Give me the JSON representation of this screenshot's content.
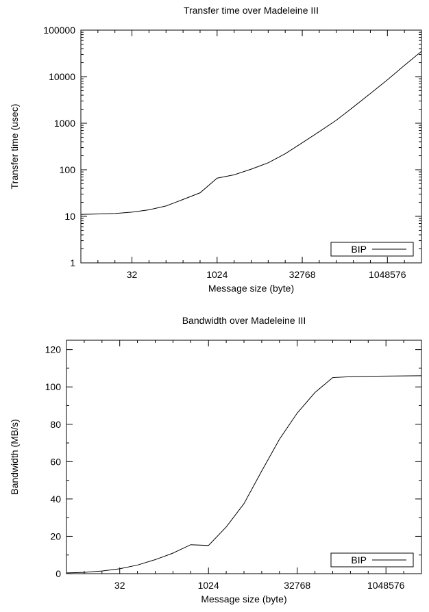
{
  "chart_data": [
    {
      "type": "line",
      "title": "Transfer time over Madeleine III",
      "xlabel": "Message size (byte)",
      "ylabel": "Transfer time (usec)",
      "x_scale": "log2",
      "y_scale": "log10",
      "xlim": [
        4,
        4194304
      ],
      "ylim": [
        1,
        100000
      ],
      "x_ticks": [
        32,
        1024,
        32768,
        1048576
      ],
      "x_tick_labels": [
        "32",
        "1024",
        "32768",
        "1048576"
      ],
      "y_ticks": [
        1,
        10,
        100,
        1000,
        10000,
        100000
      ],
      "y_tick_labels": [
        "1",
        "10",
        "100",
        "1000",
        "10000",
        "100000"
      ],
      "grid": false,
      "legend_position": "bottom-right",
      "series": [
        {
          "name": "BIP",
          "x": [
            4,
            16,
            32,
            64,
            128,
            256,
            512,
            1024,
            2048,
            4096,
            8192,
            16384,
            32768,
            65536,
            131072,
            262144,
            524288,
            1048576,
            2097152,
            4194304
          ],
          "y": [
            11,
            11.5,
            12.3,
            13.8,
            16.7,
            23,
            32,
            66,
            78,
            103,
            141,
            221,
            380,
            660,
            1160,
            2230,
            4340,
            8560,
            17500,
            35000
          ]
        }
      ]
    },
    {
      "type": "line",
      "title": "Bandwidth over Madeleine III",
      "xlabel": "Message size (byte)",
      "ylabel": "Bandwidth (MB/s)",
      "x_scale": "log2",
      "y_scale": "linear",
      "xlim": [
        4,
        4194304
      ],
      "ylim": [
        0,
        125
      ],
      "x_ticks": [
        32,
        1024,
        32768,
        1048576
      ],
      "x_tick_labels": [
        "32",
        "1024",
        "32768",
        "1048576"
      ],
      "y_ticks": [
        0,
        20,
        40,
        60,
        80,
        100,
        120
      ],
      "y_tick_labels": [
        "0",
        "20",
        "40",
        "60",
        "80",
        "100",
        "120"
      ],
      "grid": false,
      "legend_position": "bottom-right",
      "series": [
        {
          "name": "BIP",
          "x": [
            4,
            8,
            16,
            32,
            64,
            128,
            256,
            512,
            1024,
            2048,
            4096,
            8192,
            16384,
            32768,
            65536,
            131072,
            262144,
            524288,
            1048576,
            2097152,
            4194304
          ],
          "y": [
            0.4,
            0.7,
            1.4,
            2.6,
            4.6,
            7.5,
            11,
            15.5,
            15.1,
            25,
            37.5,
            55,
            72,
            86,
            97,
            105,
            105.5,
            105.7,
            105.8,
            105.9,
            106
          ]
        }
      ]
    }
  ]
}
